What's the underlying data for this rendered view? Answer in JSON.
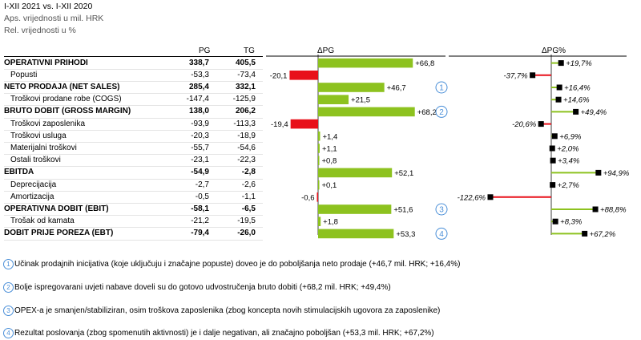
{
  "header": {
    "line1": "I-XII 2021 vs. I-XII 2020",
    "line2": "Aps. vrijednosti u mil. HRK",
    "line3": "Rel. vrijednosti u %"
  },
  "columns": {
    "pg": "PG",
    "tg": "TG",
    "dpg": "ΔPG",
    "dpgp": "ΔPG%"
  },
  "chart_data": {
    "type": "bar",
    "categories": [
      "OPERATIVNI PRIHODI",
      "Popusti",
      "NETO PRODAJA (NET SALES)",
      "Troškovi prodane robe (COGS)",
      "BRUTO DOBIT (GROSS MARGIN)",
      "Troškovi zaposlenika",
      "Troškovi usluga",
      "Materijalni troškovi",
      "Ostali troškovi",
      "EBITDA",
      "Deprecijacija",
      "Amortizacija",
      "OPERATIVNA DOBIT (EBIT)",
      "Trošak od kamata",
      "DOBIT PRIJE POREZA (EBT)"
    ],
    "bold": [
      true,
      false,
      true,
      false,
      true,
      false,
      false,
      false,
      false,
      true,
      false,
      false,
      true,
      false,
      true
    ],
    "pg": [
      "338,7",
      "-53,3",
      "285,4",
      "-147,4",
      "138,0",
      "-93,9",
      "-20,3",
      "-55,7",
      "-23,1",
      "-54,9",
      "-2,7",
      "-0,5",
      "-58,1",
      "-21,2",
      "-79,4"
    ],
    "tg": [
      "405,5",
      "-73,4",
      "332,1",
      "-125,9",
      "206,2",
      "-113,3",
      "-18,9",
      "-54,6",
      "-22,3",
      "-2,8",
      "-2,6",
      "-1,1",
      "-6,5",
      "-19,5",
      "-26,0"
    ],
    "delta_values": [
      66.8,
      -20.1,
      46.7,
      21.5,
      68.2,
      -19.4,
      1.4,
      1.1,
      0.8,
      52.1,
      0.1,
      -0.6,
      51.6,
      1.8,
      53.3
    ],
    "delta_labels": [
      "+66,8",
      "-20,1",
      "+46,7",
      "+21,5",
      "+68,2",
      "-19,4",
      "+1,4",
      "+1,1",
      "+0,8",
      "+52,1",
      "+0,1",
      "-0,6",
      "+51,6",
      "+1,8",
      "+53,3"
    ],
    "delta_colors": [
      "#8dc21f",
      "#e8101a",
      "#8dc21f",
      "#8dc21f",
      "#8dc21f",
      "#e8101a",
      "#8dc21f",
      "#8dc21f",
      "#8dc21f",
      "#8dc21f",
      "#8dc21f",
      "#e8101a",
      "#8dc21f",
      "#8dc21f",
      "#8dc21f"
    ],
    "pct_values": [
      19.7,
      -37.7,
      16.4,
      14.6,
      49.4,
      -20.6,
      6.9,
      2.0,
      3.4,
      94.9,
      2.7,
      -122.6,
      88.8,
      8.3,
      67.2
    ],
    "pct_labels": [
      "+19,7%",
      "-37,7%",
      "+16,4%",
      "+14,6%",
      "+49,4%",
      "-20,6%",
      "+6,9%",
      "+2,0%",
      "+3,4%",
      "+94,9%",
      "+2,7%",
      "-122,6%",
      "+88,8%",
      "+8,3%",
      "+67,2%"
    ],
    "pct_colors": [
      "#8dc21f",
      "#e8101a",
      "#8dc21f",
      "#8dc21f",
      "#8dc21f",
      "#e8101a",
      "#8dc21f",
      "#8dc21f",
      "#8dc21f",
      "#8dc21f",
      "#8dc21f",
      "#e8101a",
      "#8dc21f",
      "#8dc21f",
      "#8dc21f"
    ],
    "markers": [
      {
        "row": 2,
        "label": "1"
      },
      {
        "row": 4,
        "label": "2"
      },
      {
        "row": 12,
        "label": "3"
      },
      {
        "row": 14,
        "label": "4"
      }
    ],
    "axis_color": "#a0a0a0"
  },
  "notes": [
    {
      "num": "1",
      "text": "Učinak prodajnih inicijativa (koje uključuju i značajne popuste) doveo je do poboljšanja neto prodaje (+46,7 mil. HRK; +16,4%)"
    },
    {
      "num": "2",
      "text": "Bolje ispregovarani uvjeti nabave doveli su do gotovo udvostručenja bruto dobiti (+68,2 mil. HRK; +49,4%)"
    },
    {
      "num": "3",
      "text": "OPEX-a je smanjen/stabiliziran, osim troškova zaposlenika (zbog koncepta novih stimulacijskih ugovora za zaposlenike)"
    },
    {
      "num": "4",
      "text": "Rezultat poslovanja (zbog spomenutih aktivnosti) je i dalje negativan, ali značajno poboljšan (+53,3 mil. HRK; +67,2%)"
    }
  ]
}
